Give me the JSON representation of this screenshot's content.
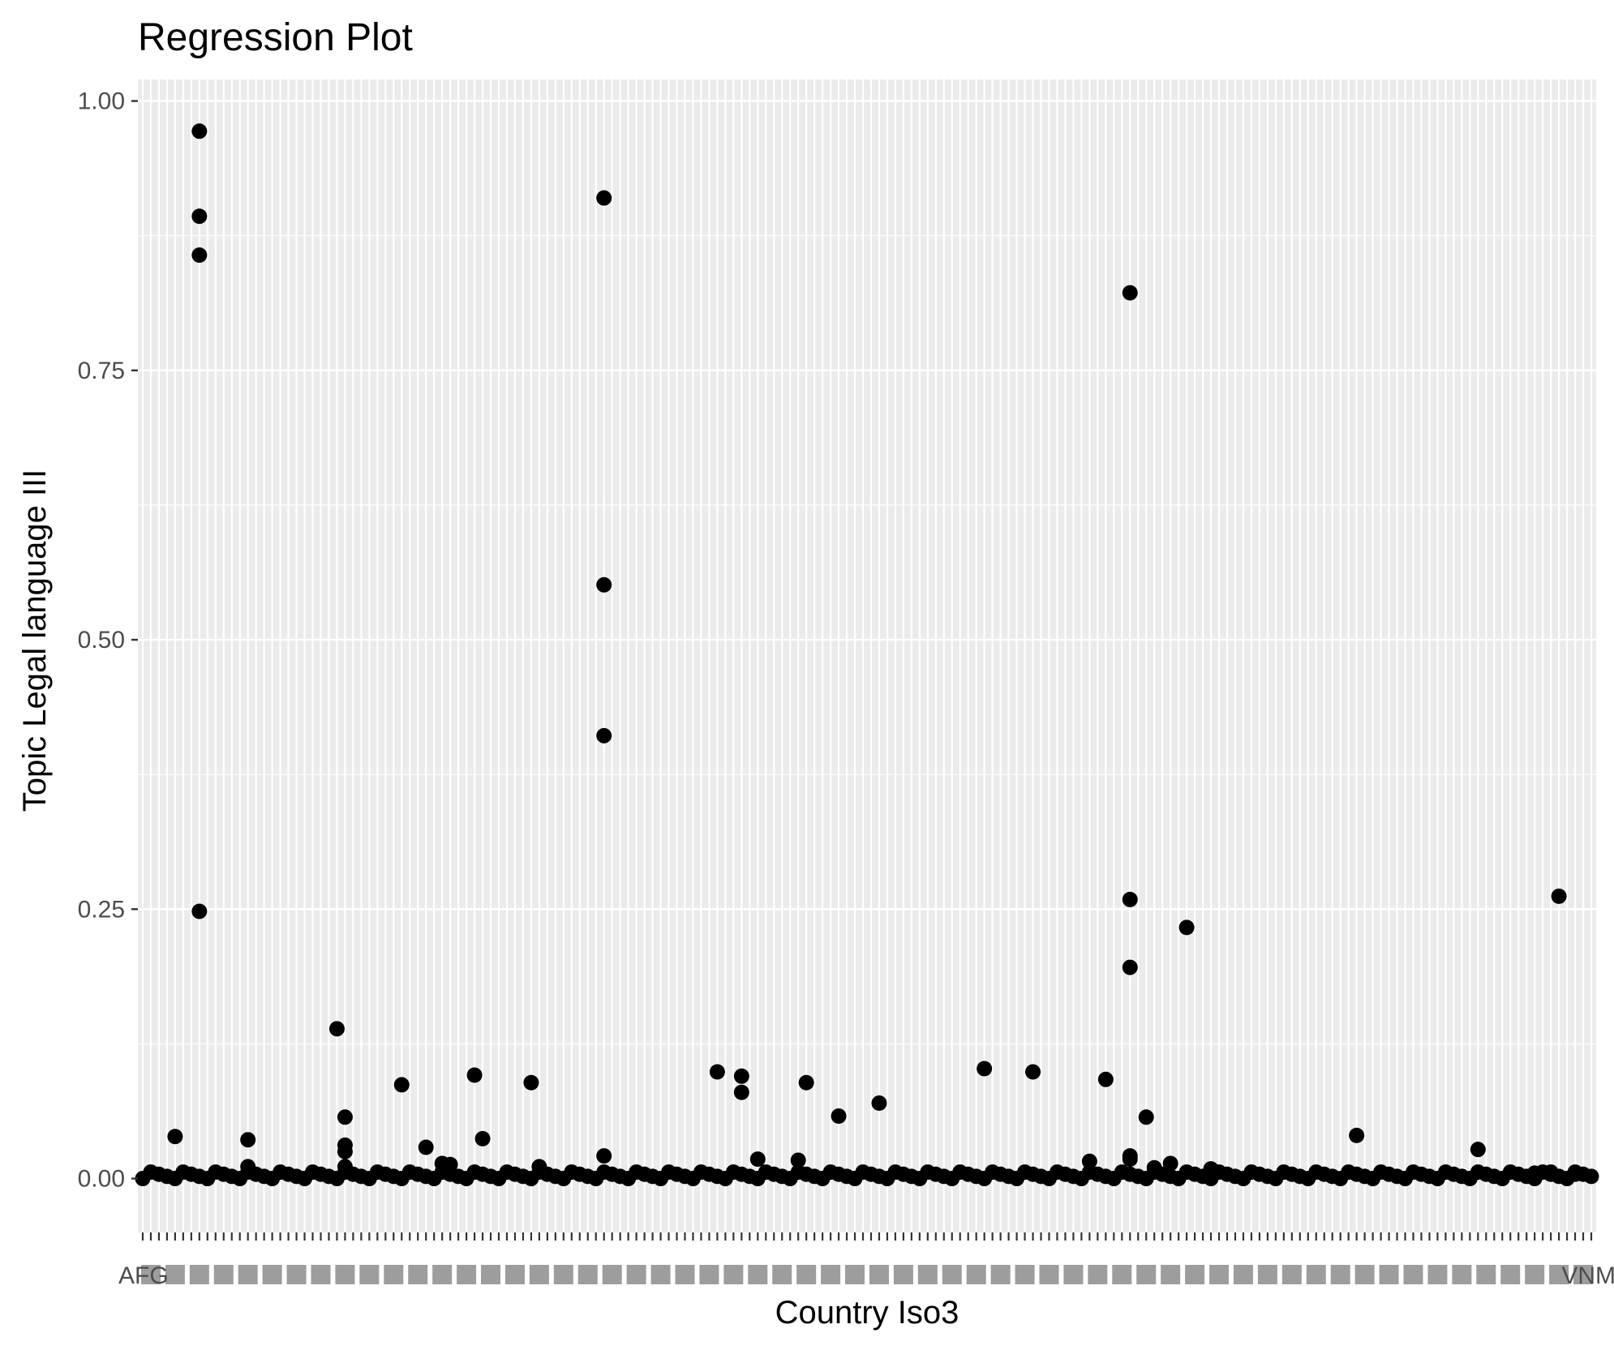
{
  "chart_data": {
    "type": "scatter",
    "title": "Regression Plot",
    "xlabel": "Country Iso3",
    "ylabel": "Topic Legal language III",
    "x_axis_type": "categorical",
    "category_count": 180,
    "category_tick_labels_visible": [
      "AFG",
      "VNM"
    ],
    "ylim": [
      -0.05,
      1.02
    ],
    "yticks": [
      0,
      0.25,
      0.5,
      0.75,
      1
    ],
    "ytick_labels": [
      "0.00",
      "0.25",
      "0.50",
      "0.75",
      "1.00"
    ],
    "grid": true,
    "background": "#ebebeb",
    "grid_color": "#ffffff",
    "point_color": "#000000",
    "points": [
      {
        "x": 7,
        "y": 0.972
      },
      {
        "x": 7,
        "y": 0.893
      },
      {
        "x": 7,
        "y": 0.857
      },
      {
        "x": 7,
        "y": 0.248
      },
      {
        "x": 4,
        "y": 0.039
      },
      {
        "x": 13,
        "y": 0.036
      },
      {
        "x": 13,
        "y": 0.011
      },
      {
        "x": 24,
        "y": 0.139
      },
      {
        "x": 25,
        "y": 0.057
      },
      {
        "x": 25,
        "y": 0.031
      },
      {
        "x": 25,
        "y": 0.025
      },
      {
        "x": 25,
        "y": 0.011
      },
      {
        "x": 32,
        "y": 0.087
      },
      {
        "x": 35,
        "y": 0.029
      },
      {
        "x": 37,
        "y": 0.014
      },
      {
        "x": 38,
        "y": 0.013
      },
      {
        "x": 41,
        "y": 0.096
      },
      {
        "x": 42,
        "y": 0.037
      },
      {
        "x": 48,
        "y": 0.089
      },
      {
        "x": 49,
        "y": 0.011
      },
      {
        "x": 57,
        "y": 0.91
      },
      {
        "x": 57,
        "y": 0.551
      },
      {
        "x": 57,
        "y": 0.411
      },
      {
        "x": 57,
        "y": 0.021
      },
      {
        "x": 71,
        "y": 0.099
      },
      {
        "x": 74,
        "y": 0.095
      },
      {
        "x": 74,
        "y": 0.08
      },
      {
        "x": 76,
        "y": 0.018
      },
      {
        "x": 81,
        "y": 0.017
      },
      {
        "x": 82,
        "y": 0.089
      },
      {
        "x": 86,
        "y": 0.058
      },
      {
        "x": 91,
        "y": 0.07
      },
      {
        "x": 104,
        "y": 0.102
      },
      {
        "x": 110,
        "y": 0.099
      },
      {
        "x": 117,
        "y": 0.016
      },
      {
        "x": 119,
        "y": 0.092
      },
      {
        "x": 122,
        "y": 0.822
      },
      {
        "x": 122,
        "y": 0.259
      },
      {
        "x": 122,
        "y": 0.196
      },
      {
        "x": 122,
        "y": 0.021
      },
      {
        "x": 122,
        "y": 0.018
      },
      {
        "x": 124,
        "y": 0.057
      },
      {
        "x": 125,
        "y": 0.01
      },
      {
        "x": 127,
        "y": 0.014
      },
      {
        "x": 129,
        "y": 0.233
      },
      {
        "x": 132,
        "y": 0.009
      },
      {
        "x": 150,
        "y": 0.04
      },
      {
        "x": 165,
        "y": 0.027
      },
      {
        "x": 175,
        "y": 0.262
      },
      {
        "x": 174,
        "y": 0.006
      },
      {
        "x": 177,
        "y": 0.004
      },
      {
        "x": 172,
        "y": 0.005
      }
    ],
    "baseline_points_y": 0.0,
    "baseline_points_note_values": [
      0.0,
      0.002,
      0.004,
      0.006
    ]
  }
}
